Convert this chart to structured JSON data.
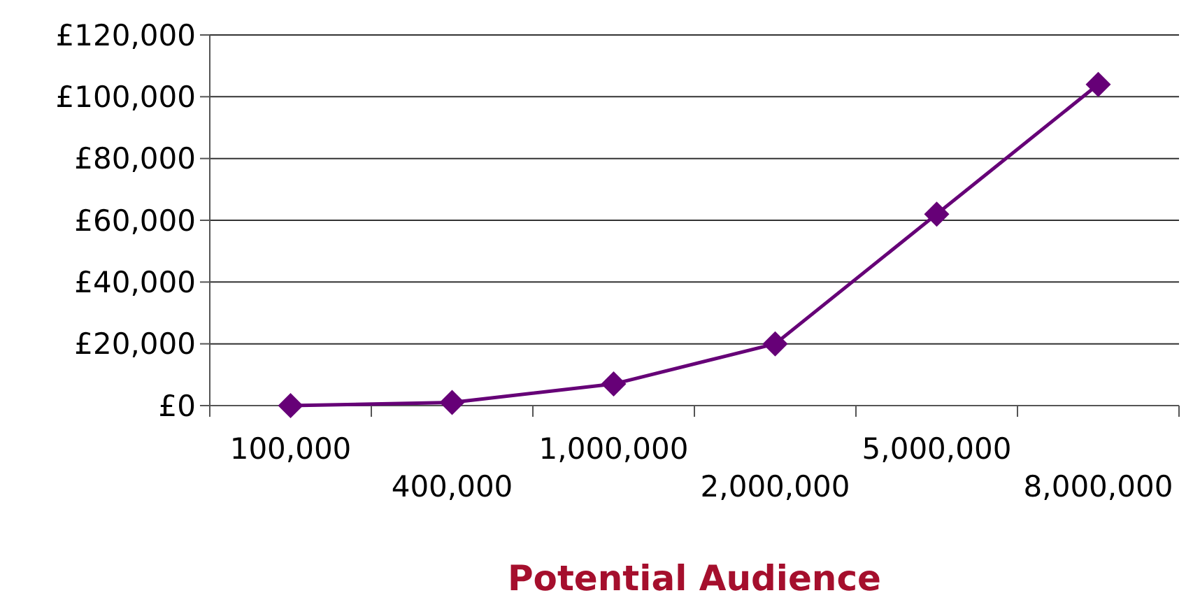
{
  "chart_data": {
    "type": "line",
    "xlabel": "Potential Audience",
    "categories": [
      "100,000",
      "400,000",
      "1,000,000",
      "2,000,000",
      "5,000,000",
      "8,000,000"
    ],
    "series": [
      {
        "color": "#660077",
        "values": [
          0,
          1000,
          7000,
          20000,
          62000,
          104000
        ]
      }
    ],
    "ylim": [
      0,
      120000
    ],
    "yticks": [
      {
        "value": 0,
        "label": "£0"
      },
      {
        "value": 20000,
        "label": "£20,000"
      },
      {
        "value": 40000,
        "label": "£40,000"
      },
      {
        "value": 60000,
        "label": "£60,000"
      },
      {
        "value": 80000,
        "label": "£80,000"
      },
      {
        "value": 100000,
        "label": "£100,000"
      },
      {
        "value": 120000,
        "label": "£120,000"
      }
    ],
    "grid": "y",
    "marker": "diamond",
    "line_style": "solid"
  }
}
